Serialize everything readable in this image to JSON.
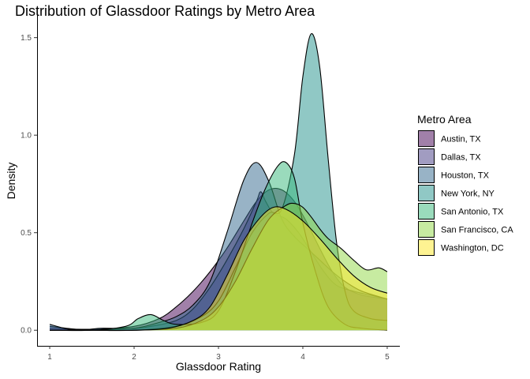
{
  "chart_data": {
    "type": "area",
    "title": "Distribution of Glassdoor Ratings by Metro Area",
    "xlabel": "Glassdoor Rating",
    "ylabel": "Density",
    "xlim": [
      0.85,
      5.15
    ],
    "ylim": [
      -0.08,
      1.62
    ],
    "x_ticks": [
      1,
      2,
      3,
      4,
      5
    ],
    "y_ticks": [
      0.0,
      0.5,
      1.0,
      1.5
    ],
    "y_tick_labels": [
      "0.0",
      "0.5",
      "1.0",
      "1.5"
    ],
    "grid": false,
    "legend": {
      "title": "Metro Area",
      "position": "right"
    },
    "series": [
      {
        "name": "Austin, TX",
        "color": "#440154",
        "x": [
          1.0,
          1.5,
          2.0,
          2.3,
          2.5,
          2.7,
          2.9,
          3.1,
          3.3,
          3.45,
          3.6,
          3.75,
          3.9,
          4.05,
          4.2,
          4.35,
          4.5,
          4.7,
          5.0
        ],
        "y": [
          0.01,
          0.005,
          0.02,
          0.06,
          0.12,
          0.2,
          0.3,
          0.42,
          0.56,
          0.66,
          0.72,
          0.72,
          0.66,
          0.55,
          0.42,
          0.3,
          0.22,
          0.18,
          0.16
        ]
      },
      {
        "name": "Dallas, TX",
        "color": "#443983",
        "x": [
          1.0,
          1.2,
          1.5,
          2.0,
          2.2,
          2.5,
          2.7,
          2.9,
          3.1,
          3.3,
          3.45,
          3.5,
          3.56,
          3.65,
          3.8,
          3.95,
          4.1,
          4.25,
          4.4,
          4.6,
          4.8,
          5.0
        ],
        "y": [
          0.02,
          0.01,
          0.0,
          0.01,
          0.02,
          0.05,
          0.11,
          0.22,
          0.36,
          0.52,
          0.66,
          0.71,
          0.66,
          0.6,
          0.57,
          0.5,
          0.4,
          0.3,
          0.23,
          0.2,
          0.18,
          0.16
        ]
      },
      {
        "name": "Houston, TX",
        "color": "#31688e",
        "x": [
          1.0,
          1.3,
          1.6,
          2.0,
          2.3,
          2.5,
          2.7,
          2.9,
          3.1,
          3.3,
          3.45,
          3.6,
          3.75,
          3.9,
          4.05,
          4.2,
          4.35,
          4.5,
          4.7,
          5.0
        ],
        "y": [
          0.03,
          0.0,
          0.01,
          0.01,
          0.04,
          0.07,
          0.13,
          0.25,
          0.5,
          0.77,
          0.86,
          0.76,
          0.57,
          0.48,
          0.42,
          0.36,
          0.3,
          0.25,
          0.2,
          0.16
        ]
      },
      {
        "name": "New York, NY",
        "color": "#21918c",
        "x": [
          1.0,
          1.5,
          2.0,
          2.5,
          2.8,
          3.0,
          3.2,
          3.4,
          3.6,
          3.75,
          3.9,
          4.0,
          4.1,
          4.2,
          4.3,
          4.4,
          4.5,
          4.6,
          4.8,
          5.0
        ],
        "y": [
          0.0,
          0.0,
          0.0,
          0.02,
          0.07,
          0.15,
          0.32,
          0.5,
          0.6,
          0.62,
          0.9,
          1.3,
          1.52,
          1.35,
          0.88,
          0.45,
          0.2,
          0.1,
          0.06,
          0.05
        ]
      },
      {
        "name": "San Antonio, TX",
        "color": "#35b779",
        "x": [
          1.0,
          1.5,
          1.9,
          2.05,
          2.2,
          2.35,
          2.5,
          2.8,
          3.0,
          3.2,
          3.4,
          3.55,
          3.7,
          3.8,
          3.9,
          4.0,
          4.15,
          4.3,
          4.5,
          4.7,
          5.0
        ],
        "y": [
          0.0,
          0.0,
          0.02,
          0.06,
          0.08,
          0.05,
          0.03,
          0.04,
          0.1,
          0.3,
          0.55,
          0.72,
          0.84,
          0.86,
          0.78,
          0.55,
          0.3,
          0.12,
          0.03,
          0.01,
          0.0
        ]
      },
      {
        "name": "San Francisco, CA",
        "color": "#90d743",
        "x": [
          1.0,
          1.5,
          2.0,
          2.5,
          2.8,
          3.0,
          3.2,
          3.4,
          3.6,
          3.8,
          3.9,
          4.0,
          4.1,
          4.2,
          4.3,
          4.45,
          4.6,
          4.75,
          4.9,
          5.0
        ],
        "y": [
          0.0,
          0.0,
          0.0,
          0.01,
          0.05,
          0.12,
          0.25,
          0.42,
          0.57,
          0.64,
          0.65,
          0.63,
          0.58,
          0.52,
          0.47,
          0.42,
          0.36,
          0.31,
          0.32,
          0.3
        ]
      },
      {
        "name": "Washington, DC",
        "color": "#fde725",
        "x": [
          1.0,
          1.5,
          2.0,
          2.4,
          2.7,
          2.9,
          3.1,
          3.3,
          3.5,
          3.65,
          3.8,
          4.0,
          4.2,
          4.4,
          4.6,
          4.8,
          5.0
        ],
        "y": [
          0.0,
          0.0,
          0.0,
          0.01,
          0.05,
          0.12,
          0.28,
          0.46,
          0.58,
          0.63,
          0.62,
          0.56,
          0.47,
          0.37,
          0.28,
          0.22,
          0.19
        ]
      }
    ]
  }
}
